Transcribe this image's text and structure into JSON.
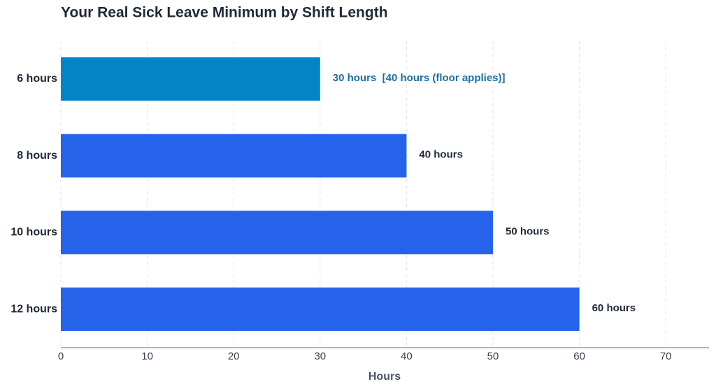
{
  "chart_data": {
    "type": "hbar",
    "title": "Your Real Sick Leave Minimum by Shift Length",
    "categories": [
      "6 hours",
      "8 hours",
      "10 hours",
      "12 hours"
    ],
    "values": [
      30,
      40,
      50,
      60
    ],
    "value_labels": [
      "30 hours  [40 hours (floor applies)]",
      "40 hours",
      "50 hours",
      "60 hours"
    ],
    "colors": [
      "#0284c7",
      "#2563eb",
      "#2563eb",
      "#2563eb"
    ],
    "value_label_colors": [
      "#1d6f9e",
      "#1f2937",
      "#1f2937",
      "#1f2937"
    ],
    "xlabel": "Hours",
    "xlim": [
      0,
      75
    ],
    "xticks": [
      0,
      10,
      20,
      30,
      40,
      50,
      60,
      70
    ],
    "grid": true
  }
}
